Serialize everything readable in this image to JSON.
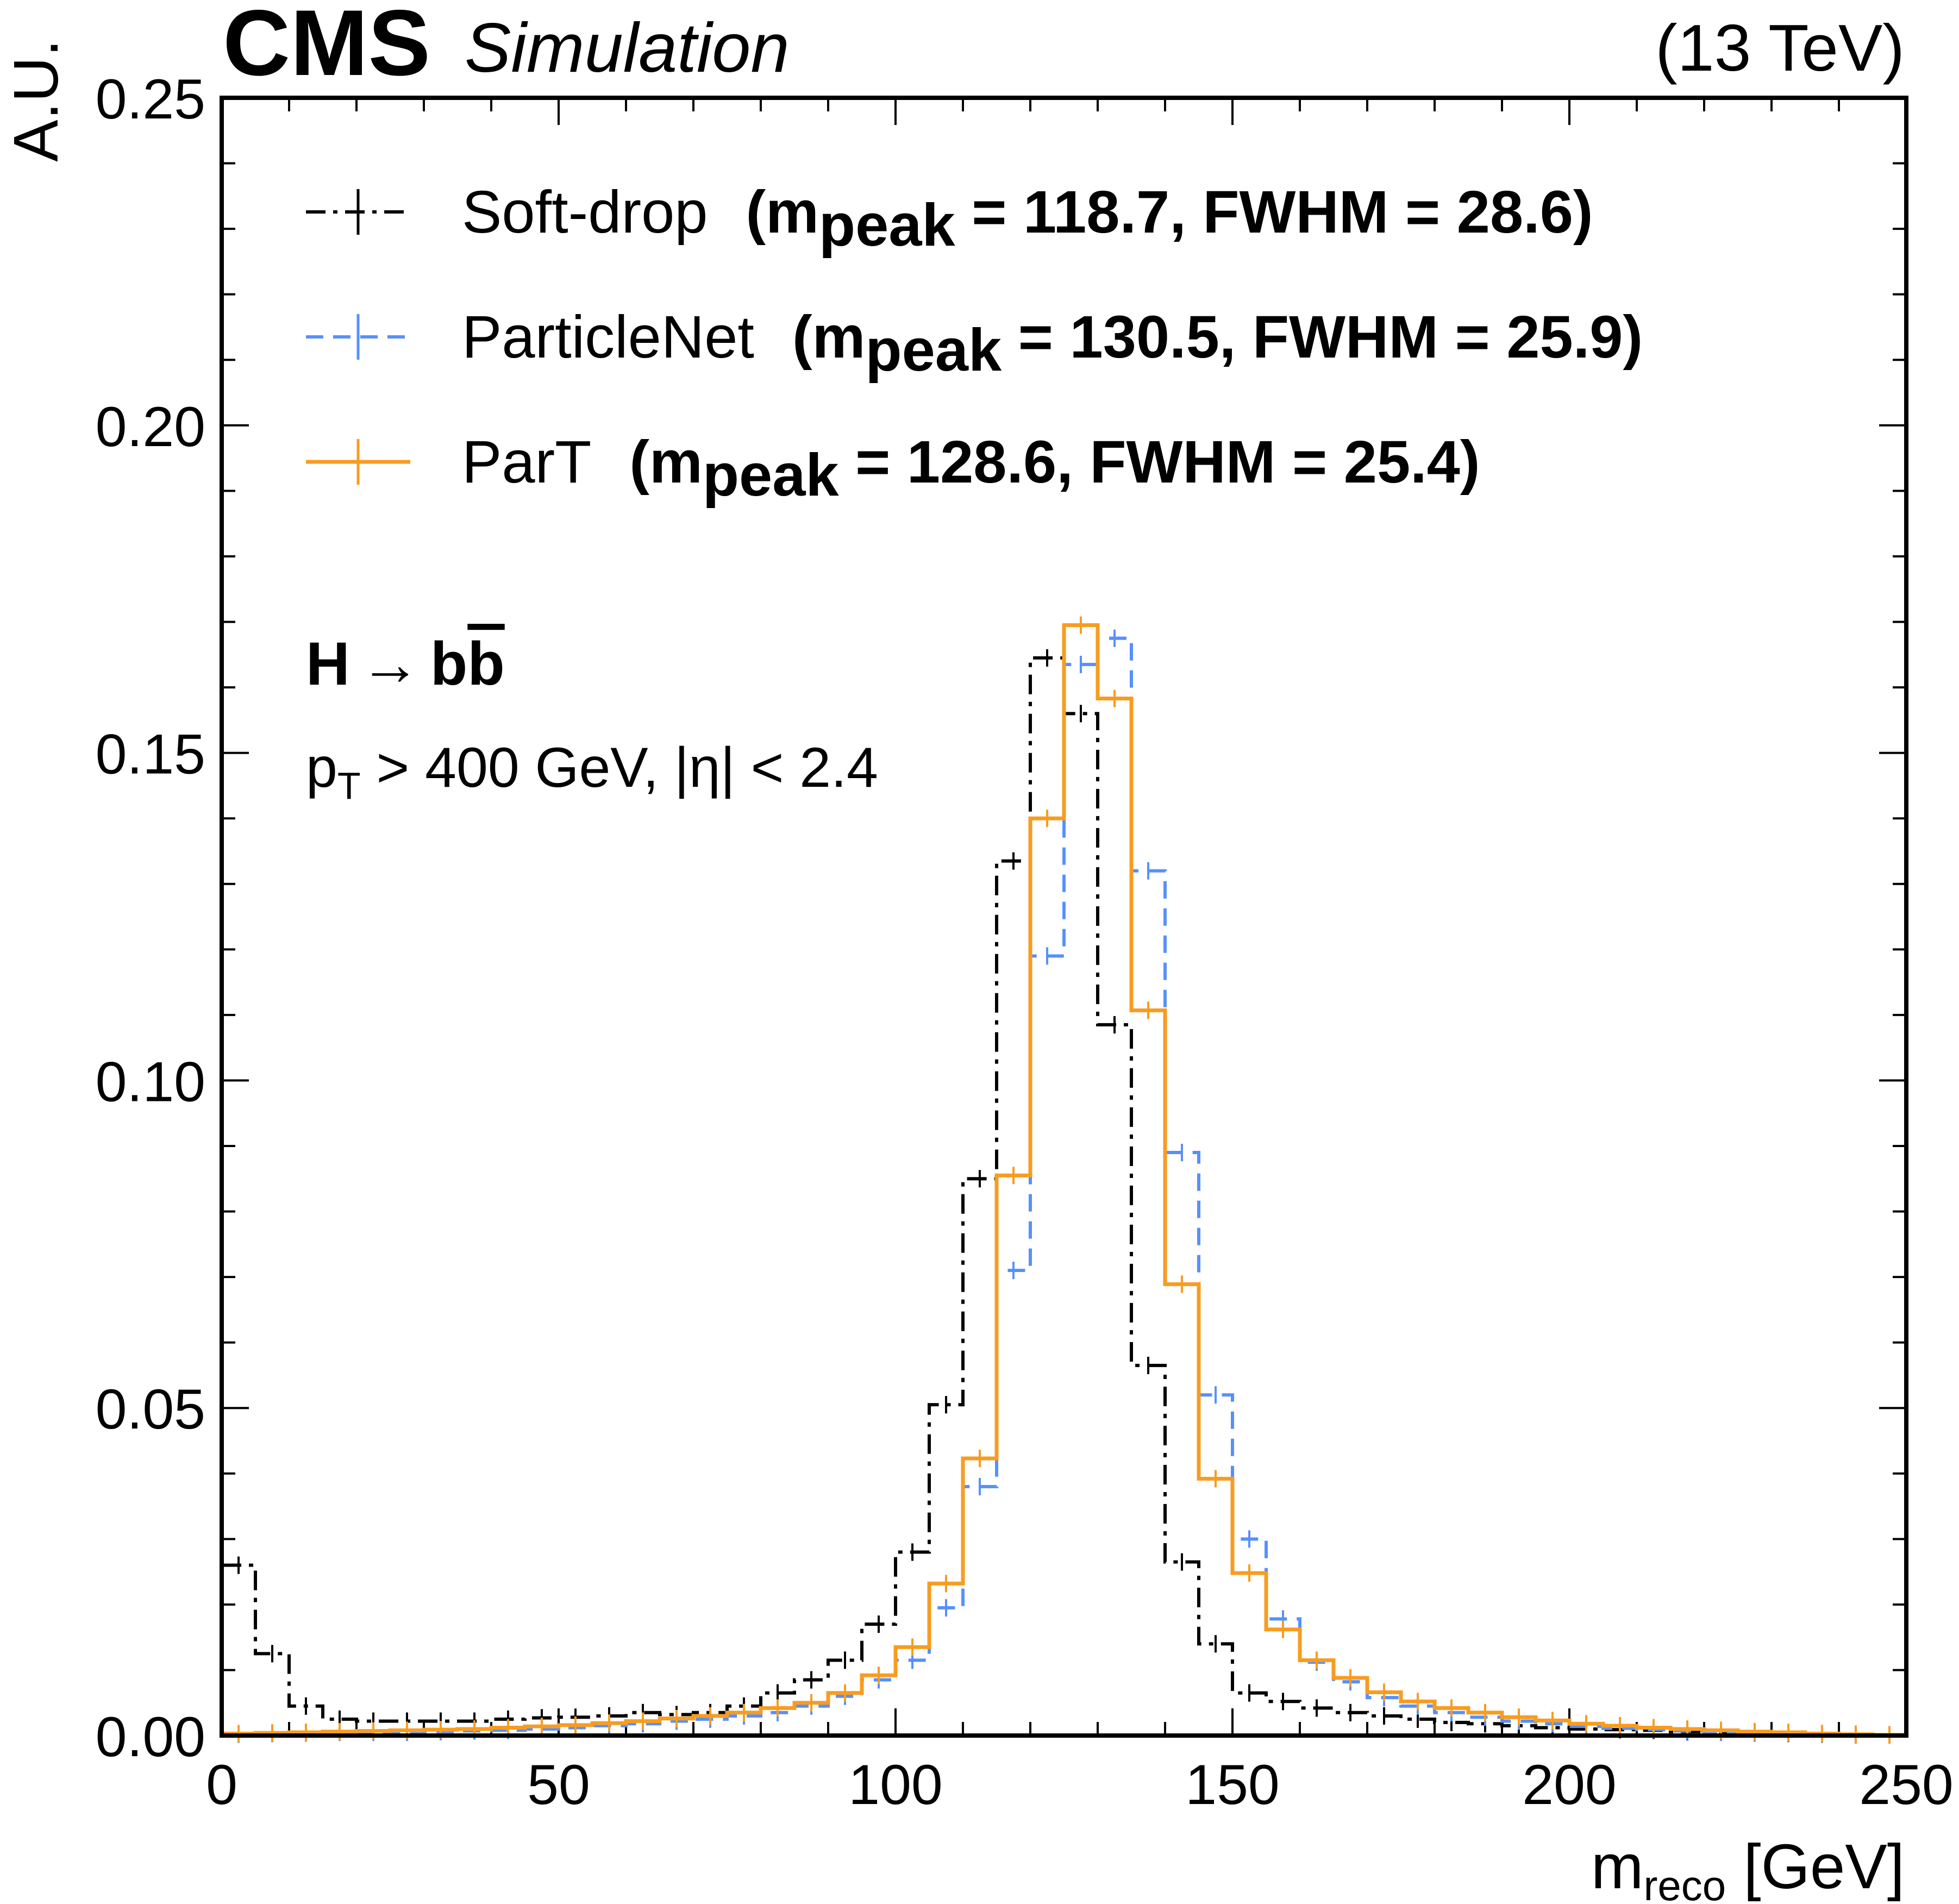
{
  "header": {
    "experiment": "CMS",
    "status": "Simulation",
    "energy": "(13 TeV)"
  },
  "annotations": {
    "process_h": "H",
    "process_arrow": "→",
    "process_b": "b",
    "process_bbar": "b",
    "cuts_p": "p",
    "cuts_T": "T",
    "cuts_rest": " > 400 GeV,  |η| < 2.4"
  },
  "chart_data": {
    "type": "line",
    "drawstyle": "steps",
    "xlabel_main": "m",
    "xlabel_sub": "reco",
    "xlabel_unit": " [GeV]",
    "ylabel": "A.U.",
    "xlim": [
      0,
      250
    ],
    "ylim": [
      0,
      0.25
    ],
    "xticks": [
      "0",
      "50",
      "100",
      "150",
      "200",
      "250"
    ],
    "yticks": [
      "0.00",
      "0.05",
      "0.10",
      "0.15",
      "0.20",
      "0.25"
    ],
    "legend_position": "top-left",
    "bin_edges": [
      0,
      5,
      10,
      15,
      20,
      25,
      30,
      35,
      40,
      45,
      50,
      55,
      60,
      65,
      70,
      75,
      80,
      85,
      90,
      95,
      100,
      105,
      110,
      115,
      120,
      125,
      130,
      135,
      140,
      145,
      150,
      155,
      160,
      165,
      170,
      175,
      180,
      185,
      190,
      195,
      200,
      205,
      210,
      215,
      220,
      225,
      230,
      235,
      240,
      245,
      250
    ],
    "series": [
      {
        "name": "Soft-drop",
        "peak_label": "peak",
        "stats_text": " = 118.7,  FWHM = 28.6)",
        "color": "#000000",
        "style": "dashdot",
        "values": [
          0.026,
          0.0125,
          0.0045,
          0.0025,
          0.0022,
          0.0022,
          0.0022,
          0.0022,
          0.0025,
          0.0027,
          0.0028,
          0.003,
          0.0035,
          0.0032,
          0.0035,
          0.0045,
          0.0065,
          0.0085,
          0.0115,
          0.017,
          0.028,
          0.0505,
          0.085,
          0.1335,
          0.1645,
          0.156,
          0.1085,
          0.0565,
          0.0265,
          0.014,
          0.0065,
          0.0052,
          0.0042,
          0.0035,
          0.003,
          0.0025,
          0.002,
          0.0018,
          0.0015,
          0.0012,
          0.001,
          0.0009,
          0.0008,
          0.0006,
          0.0005,
          0.0004,
          0.0003,
          0.0002,
          0.0002,
          0.0001
        ]
      },
      {
        "name": "ParticleNet",
        "peak_label": "peak",
        "stats_text": " = 130.5,  FWHM = 25.9)",
        "color": "#5790fc",
        "style": "dashed",
        "values": [
          0.0002,
          0.0003,
          0.0004,
          0.0005,
          0.0005,
          0.0005,
          0.0006,
          0.0007,
          0.0008,
          0.001,
          0.0012,
          0.0015,
          0.0018,
          0.0022,
          0.0025,
          0.003,
          0.0035,
          0.0045,
          0.006,
          0.0085,
          0.0115,
          0.0195,
          0.038,
          0.071,
          0.119,
          0.1635,
          0.1675,
          0.132,
          0.089,
          0.052,
          0.03,
          0.0178,
          0.0112,
          0.0082,
          0.0058,
          0.0045,
          0.0035,
          0.0028,
          0.0022,
          0.0018,
          0.0014,
          0.0011,
          0.0009,
          0.0007,
          0.0005,
          0.0004,
          0.0003,
          0.0002,
          0.0001,
          0.0001
        ]
      },
      {
        "name": "ParT",
        "peak_label": "peak",
        "stats_text": " = 128.6,  FWHM = 25.4)",
        "color": "#f89c20",
        "style": "solid",
        "values": [
          0.0003,
          0.0004,
          0.0005,
          0.0006,
          0.0007,
          0.0008,
          0.0009,
          0.001,
          0.0012,
          0.0014,
          0.0016,
          0.0019,
          0.0022,
          0.0026,
          0.003,
          0.0035,
          0.0042,
          0.005,
          0.0065,
          0.0092,
          0.0135,
          0.0232,
          0.0423,
          0.0855,
          0.14,
          0.1695,
          0.1583,
          0.1107,
          0.0689,
          0.0392,
          0.0248,
          0.0162,
          0.0115,
          0.0088,
          0.0066,
          0.0052,
          0.0042,
          0.0035,
          0.0028,
          0.0023,
          0.0018,
          0.0015,
          0.0012,
          0.001,
          0.0008,
          0.0006,
          0.0005,
          0.0003,
          0.0002,
          0.0001
        ]
      }
    ]
  }
}
